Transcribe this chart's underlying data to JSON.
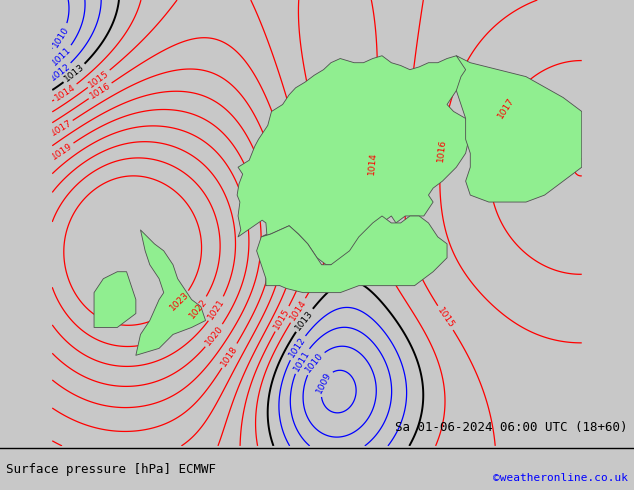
{
  "title_left": "Surface pressure [hPa] ECMWF",
  "title_right": "Sa 01-06-2024 06:00 UTC (18+60)",
  "credit": "©weatheronline.co.uk",
  "sea_color": "#c8c8c8",
  "land_color": "#90ee90",
  "land_edge_color": "#505050",
  "isobar_low_color": "#0000ff",
  "isobar_high_color": "#ff0000",
  "isobar_black_color": "#000000",
  "isobar_threshold": 1013,
  "label_fontsize": 6.5,
  "title_fontsize": 9,
  "credit_fontsize": 8,
  "lon_min": -15,
  "lon_max": 42,
  "lat_min": 43,
  "lat_max": 75,
  "figsize": [
    6.34,
    4.9
  ],
  "dpi": 100,
  "pressure_min": 1007,
  "pressure_max": 1024
}
